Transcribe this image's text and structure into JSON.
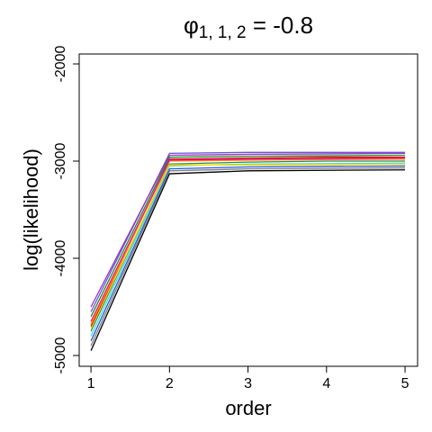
{
  "chart_data": {
    "type": "line",
    "title_symbol": "φ",
    "title_subscript": "1, 1, 2",
    "title_rest": " = -0.8",
    "x_label": "order",
    "y_label": "log(likelihood)",
    "x": [
      1,
      2,
      3,
      4,
      5
    ],
    "xlim": [
      0.85,
      5.16
    ],
    "xticks": [
      1,
      2,
      3,
      4,
      5
    ],
    "ylim": [
      -5111,
      -1898
    ],
    "yticks": [
      -5000,
      -4000,
      -3000,
      -2000
    ],
    "series": [
      {
        "color": "#000000",
        "values": [
          -4950,
          -3130,
          -3100,
          -3095,
          -3090
        ]
      },
      {
        "color": "#808080",
        "values": [
          -4900,
          -3100,
          -3080,
          -3075,
          -3070
        ]
      },
      {
        "color": "#2a5ad6",
        "values": [
          -4850,
          -3080,
          -3060,
          -3055,
          -3050
        ]
      },
      {
        "color": "#40e0d0",
        "values": [
          -4800,
          -3050,
          -3030,
          -3025,
          -3020
        ]
      },
      {
        "color": "#2e8b57",
        "values": [
          -4750,
          -3030,
          -3010,
          -3000,
          -3000
        ]
      },
      {
        "color": "#ffd700",
        "values": [
          -4720,
          -3040,
          -3040,
          -3035,
          -3030
        ]
      },
      {
        "color": "#dd0000",
        "values": [
          -4700,
          -2980,
          -2970,
          -2960,
          -2960
        ]
      },
      {
        "color": "#ff8c00",
        "values": [
          -4680,
          -3000,
          -2990,
          -2985,
          -2980
        ]
      },
      {
        "color": "#e0179b",
        "values": [
          -4650,
          -2990,
          -2980,
          -2975,
          -2970
        ]
      },
      {
        "color": "#228b22",
        "values": [
          -4600,
          -2960,
          -2950,
          -2945,
          -2940
        ]
      },
      {
        "color": "#6a5acd",
        "values": [
          -4550,
          -2920,
          -2910,
          -2910,
          -2910
        ]
      },
      {
        "color": "#9932cc",
        "values": [
          -4500,
          -2940,
          -2930,
          -2925,
          -2920
        ]
      }
    ]
  }
}
